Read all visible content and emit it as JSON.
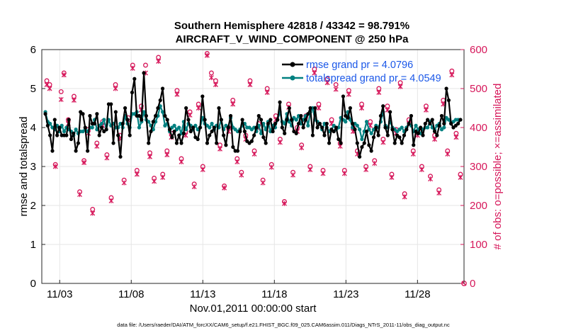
{
  "chart_data": {
    "type": "line",
    "title": "Southern Hemisphere 42818 / 43342 = 98.791%",
    "subtitle": "AIRCRAFT_V_WIND_COMPONENT @ 250 hPa",
    "xlabel": "Nov.01,2011 00:00:00 start",
    "ylabel_left": "rmse and totalspread",
    "ylabel_right": "# of obs: o=possible; ×=assimilated",
    "x_tick_labels": [
      "11/03",
      "11/08",
      "11/13",
      "11/18",
      "11/23",
      "11/28"
    ],
    "y_left_ticks": [
      "0",
      "1",
      "2",
      "3",
      "4",
      "5",
      "6"
    ],
    "y_right_ticks": [
      "0",
      "100",
      "200",
      "300",
      "400",
      "500",
      "600"
    ],
    "x_range_days": [
      0.75,
      30.25
    ],
    "x_tick_days": [
      2,
      7,
      12,
      17,
      22,
      27
    ],
    "ylim_left": [
      0,
      6
    ],
    "ylim_right": [
      0,
      600
    ],
    "footer": "data file: /Users/raeder/DAI/ATM_forcXX/CAM6_setup/f.e21.FHIST_BGC.f09_025.CAM6assim.011/Diags_NTrS_2011-11/obs_diag_output.nc",
    "series": [
      {
        "name": "rmse grand pr = 4.0796",
        "color": "#000000",
        "values": [
          4.35,
          4.05,
          3.8,
          3.4,
          4.2,
          3.8,
          4.0,
          3.8,
          3.8,
          3.8,
          4.2,
          3.7,
          3.85,
          3.4,
          3.6,
          4.4,
          4.35,
          4.0,
          3.4,
          4.3,
          4.1,
          4.1,
          4.35,
          3.8,
          4.0,
          3.9,
          3.95,
          4.6,
          4.6,
          3.6,
          4.4,
          3.8,
          3.25,
          4.1,
          4.5,
          4.2,
          3.8,
          4.9,
          5.25,
          4.3,
          4.3,
          4.2,
          5.4,
          4.3,
          3.6,
          3.9,
          4.15,
          4.3,
          4.5,
          4.7,
          5.0,
          4.3,
          4.2,
          3.95,
          3.75,
          3.9,
          3.6,
          3.8,
          3.6,
          3.85,
          4.5,
          4.2,
          3.9,
          4.0,
          3.75,
          3.7,
          4.0,
          4.8,
          4.2,
          3.6,
          3.8,
          3.9,
          4.0,
          3.6,
          4.5,
          4.2,
          3.8,
          3.55,
          4.0,
          4.3,
          3.5,
          3.4,
          3.4,
          3.9,
          4.2,
          3.9,
          3.65,
          3.6,
          3.65,
          3.8,
          4.0,
          4.3,
          4.2,
          3.75,
          3.6,
          4.1,
          4.2,
          3.9,
          4.1,
          4.2,
          4.65,
          4.0,
          3.85,
          4.2,
          4.5,
          4.2,
          3.9,
          3.85,
          4.1,
          4.3,
          4.0,
          4.2,
          4.35,
          4.5,
          3.8,
          4.5,
          4.0,
          4.1,
          4.0,
          3.8,
          4.1,
          3.6,
          3.95,
          3.9,
          4.0,
          3.7,
          3.6,
          4.8,
          4.3,
          4.25,
          4.5,
          4.1,
          3.95,
          3.6,
          3.25,
          3.5,
          3.6,
          3.9,
          3.55,
          3.4,
          3.75,
          4.0,
          3.8,
          4.3,
          4.55,
          4.0,
          3.8,
          4.4,
          3.95,
          3.6,
          3.8,
          3.75,
          3.6,
          3.8,
          3.95,
          4.1,
          4.3,
          3.55,
          3.9,
          3.85,
          4.0,
          3.8,
          4.1,
          4.2,
          4.1,
          4.2,
          3.9,
          3.8,
          4.05,
          4.3,
          4.1,
          5.0,
          4.7,
          4.1,
          4.0,
          4.05,
          4.1,
          4.2
        ]
      },
      {
        "name": "totalspread grand pr = 4.0549",
        "color": "#008080",
        "values": [
          4.4,
          4.15,
          4.1,
          4.0,
          3.95,
          4.05,
          3.9,
          4.05,
          3.9,
          4.0,
          3.95,
          3.9,
          3.8,
          3.95,
          3.85,
          3.9,
          3.9,
          3.95,
          3.9,
          4.0,
          4.0,
          4.2,
          3.95,
          4.05,
          4.1,
          4.2,
          3.95,
          4.2,
          4.05,
          4.1,
          4.0,
          4.0,
          4.1,
          4.0,
          4.3,
          4.1,
          4.0,
          4.35,
          4.35,
          4.4,
          4.0,
          4.15,
          4.4,
          4.2,
          4.15,
          4.05,
          3.95,
          4.15,
          4.3,
          4.55,
          4.4,
          4.05,
          4.1,
          3.9,
          4.0,
          4.05,
          3.95,
          4.0,
          3.85,
          4.15,
          3.95,
          4.1,
          4.05,
          3.95,
          4.05,
          3.95,
          4.0,
          4.25,
          4.1,
          4.05,
          4.0,
          4.1,
          3.95,
          4.05,
          4.0,
          4.2,
          3.95,
          4.05,
          4.0,
          4.25,
          4.0,
          3.95,
          3.9,
          3.95,
          4.05,
          4.1,
          4.0,
          4.0,
          3.95,
          4.0,
          3.9,
          4.05,
          3.85,
          4.1,
          3.95,
          4.15,
          3.9,
          4.05,
          4.0,
          4.2,
          4.4,
          4.15,
          4.1,
          4.35,
          4.15,
          4.05,
          4.25,
          4.2,
          4.3,
          4.1,
          4.2,
          4.3,
          4.05,
          4.4,
          4.5,
          4.2,
          4.15,
          4.1,
          3.95,
          4.1,
          4.0,
          3.9,
          3.95,
          4.05,
          3.95,
          4.0,
          4.25,
          4.2,
          4.15,
          4.4,
          4.2,
          4.0,
          4.1,
          4.05,
          3.95,
          3.7,
          3.9,
          4.15,
          3.95,
          3.85,
          3.95,
          4.05,
          4.0,
          4.15,
          4.4,
          4.05,
          4.0,
          4.15,
          4.0,
          3.95,
          3.9,
          3.95,
          4.0,
          3.9,
          4.0,
          4.1,
          4.05,
          3.9,
          4.05,
          3.95,
          3.85,
          3.95,
          4.0,
          4.0,
          4.15,
          4.0,
          3.95,
          4.05,
          4.1,
          3.95,
          4.0,
          4.25,
          4.2,
          4.1,
          4.15,
          4.2,
          4.2,
          4.2
        ]
      },
      {
        "name": "obs possible",
        "color": "#d6175a",
        "axis": "right",
        "marker": "o",
        "points": [
          [
            1.1,
            520
          ],
          [
            1.3,
            510
          ],
          [
            1.7,
            305
          ],
          [
            2.1,
            492
          ],
          [
            2.3,
            540
          ],
          [
            2.6,
            420
          ],
          [
            3.0,
            480
          ],
          [
            3.4,
            235
          ],
          [
            3.7,
            315
          ],
          [
            4.0,
            395
          ],
          [
            4.3,
            190
          ],
          [
            4.6,
            360
          ],
          [
            5.0,
            415
          ],
          [
            5.3,
            330
          ],
          [
            5.6,
            220
          ],
          [
            5.9,
            510
          ],
          [
            6.2,
            380
          ],
          [
            6.5,
            265
          ],
          [
            6.8,
            425
          ],
          [
            7.1,
            560
          ],
          [
            7.4,
            290
          ],
          [
            7.7,
            455
          ],
          [
            8.0,
            560
          ],
          [
            8.3,
            335
          ],
          [
            8.6,
            270
          ],
          [
            8.9,
            580
          ],
          [
            9.2,
            280
          ],
          [
            9.5,
            340
          ],
          [
            9.8,
            385
          ],
          [
            10.2,
            495
          ],
          [
            10.5,
            320
          ],
          [
            10.8,
            390
          ],
          [
            11.1,
            440
          ],
          [
            11.4,
            255
          ],
          [
            11.7,
            460
          ],
          [
            12.0,
            300
          ],
          [
            12.3,
            590
          ],
          [
            12.6,
            540
          ],
          [
            12.9,
            520
          ],
          [
            13.2,
            355
          ],
          [
            13.5,
            250
          ],
          [
            13.8,
            400
          ],
          [
            14.1,
            470
          ],
          [
            14.4,
            320
          ],
          [
            14.7,
            285
          ],
          [
            15.0,
            380
          ],
          [
            15.3,
            520
          ],
          [
            15.6,
            340
          ],
          [
            15.9,
            410
          ],
          [
            16.2,
            265
          ],
          [
            16.5,
            500
          ],
          [
            16.8,
            305
          ],
          [
            17.1,
            430
          ],
          [
            17.4,
            370
          ],
          [
            17.7,
            210
          ],
          [
            18.0,
            460
          ],
          [
            18.3,
            285
          ],
          [
            18.6,
            400
          ],
          [
            18.9,
            355
          ],
          [
            19.2,
            430
          ],
          [
            19.5,
            300
          ],
          [
            19.8,
            550
          ],
          [
            20.1,
            460
          ],
          [
            20.4,
            290
          ],
          [
            20.7,
            525
          ],
          [
            21.0,
            420
          ],
          [
            21.3,
            510
          ],
          [
            21.6,
            360
          ],
          [
            21.9,
            290
          ],
          [
            22.2,
            495
          ],
          [
            22.5,
            400
          ],
          [
            22.8,
            340
          ],
          [
            23.1,
            460
          ],
          [
            23.4,
            300
          ],
          [
            23.7,
            415
          ],
          [
            24.0,
            315
          ],
          [
            24.3,
            500
          ],
          [
            24.6,
            370
          ],
          [
            24.9,
            455
          ],
          [
            25.2,
            280
          ],
          [
            25.5,
            395
          ],
          [
            25.8,
            515
          ],
          [
            26.1,
            230
          ],
          [
            26.4,
            420
          ],
          [
            26.7,
            340
          ],
          [
            27.0,
            390
          ],
          [
            27.3,
            300
          ],
          [
            27.6,
            455
          ],
          [
            27.9,
            275
          ],
          [
            28.2,
            380
          ],
          [
            28.5,
            240
          ],
          [
            28.8,
            470
          ],
          [
            29.1,
            340
          ],
          [
            29.4,
            545
          ],
          [
            29.7,
            385
          ],
          [
            30.0,
            280
          ]
        ]
      },
      {
        "name": "obs assimilated",
        "color": "#d6175a",
        "axis": "right",
        "marker": "x",
        "points": [
          [
            1.1,
            510
          ],
          [
            1.3,
            500
          ],
          [
            1.7,
            300
          ],
          [
            2.1,
            472
          ],
          [
            2.3,
            535
          ],
          [
            2.6,
            410
          ],
          [
            3.0,
            470
          ],
          [
            3.4,
            228
          ],
          [
            3.7,
            310
          ],
          [
            4.0,
            385
          ],
          [
            4.3,
            180
          ],
          [
            4.6,
            352
          ],
          [
            5.0,
            405
          ],
          [
            5.3,
            322
          ],
          [
            5.6,
            212
          ],
          [
            5.9,
            500
          ],
          [
            6.2,
            372
          ],
          [
            6.5,
            258
          ],
          [
            6.8,
            418
          ],
          [
            7.1,
            552
          ],
          [
            7.4,
            280
          ],
          [
            7.7,
            445
          ],
          [
            8.0,
            540
          ],
          [
            8.3,
            325
          ],
          [
            8.6,
            262
          ],
          [
            8.9,
            570
          ],
          [
            9.2,
            272
          ],
          [
            9.5,
            330
          ],
          [
            9.8,
            375
          ],
          [
            10.2,
            485
          ],
          [
            10.5,
            312
          ],
          [
            10.8,
            380
          ],
          [
            11.1,
            432
          ],
          [
            11.4,
            248
          ],
          [
            11.7,
            450
          ],
          [
            12.0,
            292
          ],
          [
            12.3,
            585
          ],
          [
            12.6,
            528
          ],
          [
            12.9,
            510
          ],
          [
            13.2,
            345
          ],
          [
            13.5,
            245
          ],
          [
            13.8,
            390
          ],
          [
            14.1,
            460
          ],
          [
            14.4,
            312
          ],
          [
            14.7,
            278
          ],
          [
            15.0,
            370
          ],
          [
            15.3,
            510
          ],
          [
            15.6,
            332
          ],
          [
            15.9,
            400
          ],
          [
            16.2,
            258
          ],
          [
            16.5,
            490
          ],
          [
            16.8,
            298
          ],
          [
            17.1,
            420
          ],
          [
            17.4,
            362
          ],
          [
            17.7,
            205
          ],
          [
            18.0,
            452
          ],
          [
            18.3,
            278
          ],
          [
            18.6,
            390
          ],
          [
            18.9,
            348
          ],
          [
            19.2,
            420
          ],
          [
            19.5,
            292
          ],
          [
            19.8,
            540
          ],
          [
            20.1,
            450
          ],
          [
            20.4,
            282
          ],
          [
            20.7,
            515
          ],
          [
            21.0,
            410
          ],
          [
            21.3,
            498
          ],
          [
            21.6,
            352
          ],
          [
            21.9,
            282
          ],
          [
            22.2,
            485
          ],
          [
            22.5,
            390
          ],
          [
            22.8,
            332
          ],
          [
            23.1,
            450
          ],
          [
            23.4,
            292
          ],
          [
            23.7,
            405
          ],
          [
            24.0,
            308
          ],
          [
            24.3,
            490
          ],
          [
            24.6,
            362
          ],
          [
            24.9,
            445
          ],
          [
            25.2,
            272
          ],
          [
            25.5,
            385
          ],
          [
            25.8,
            505
          ],
          [
            26.1,
            222
          ],
          [
            26.4,
            410
          ],
          [
            26.7,
            332
          ],
          [
            27.0,
            380
          ],
          [
            27.3,
            292
          ],
          [
            27.6,
            445
          ],
          [
            27.9,
            268
          ],
          [
            28.2,
            370
          ],
          [
            28.5,
            232
          ],
          [
            28.8,
            460
          ],
          [
            29.1,
            332
          ],
          [
            29.4,
            535
          ],
          [
            29.7,
            375
          ],
          [
            30.0,
            272
          ]
        ]
      }
    ],
    "last_point": {
      "x": 30.25,
      "y_right": 0
    }
  }
}
